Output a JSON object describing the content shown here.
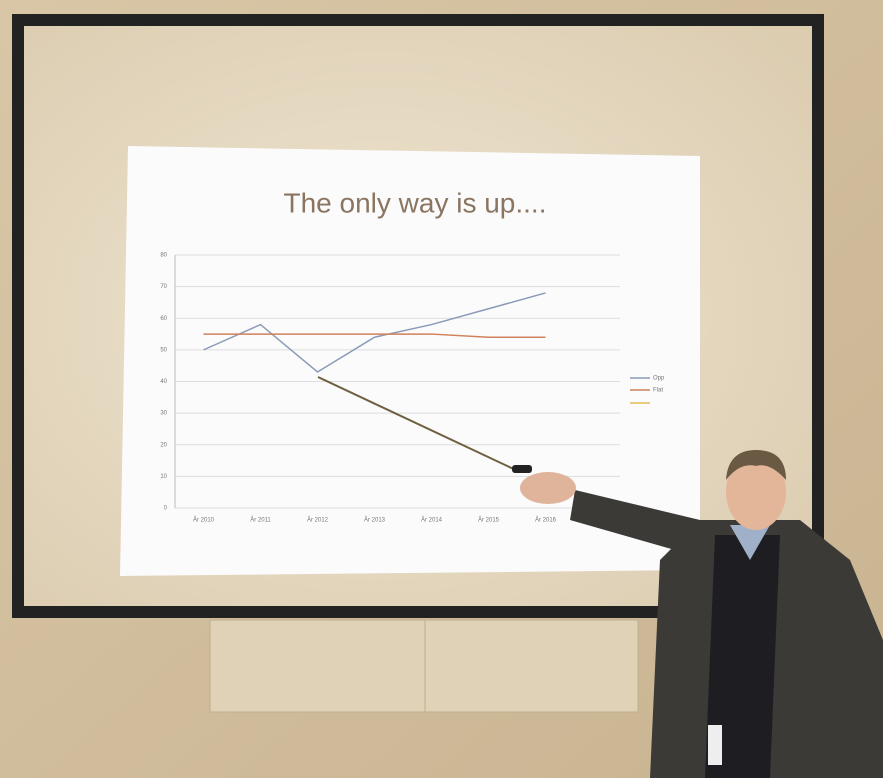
{
  "chart_data": {
    "type": "line",
    "title": "The only way is up....",
    "categories": [
      "År 2010",
      "År 2011",
      "År 2012",
      "År 2013",
      "År 2014",
      "År 2015",
      "År 2016"
    ],
    "series": [
      {
        "name": "Opp",
        "color": "#8a9ab8",
        "values": [
          50,
          58,
          43,
          54,
          58,
          63,
          68
        ]
      },
      {
        "name": "Flat",
        "color": "#d0805a",
        "values": [
          55,
          55,
          55,
          55,
          55,
          54,
          54
        ]
      }
    ],
    "ylim": [
      0,
      80
    ],
    "yticks": [
      0,
      10,
      20,
      30,
      40,
      50,
      60,
      70,
      80
    ],
    "grid": true
  }
}
